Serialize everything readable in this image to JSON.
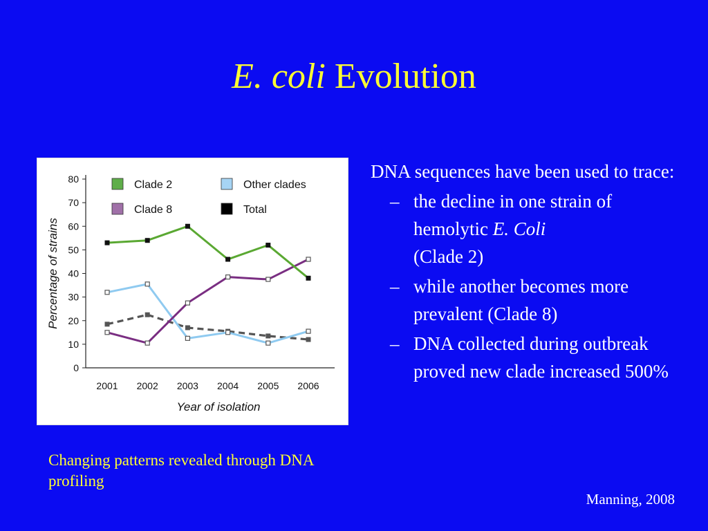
{
  "slide": {
    "title_italic": "E. coli",
    "title_rest": "Evolution",
    "caption": "Changing patterns revealed through DNA profiling",
    "credit": "Manning, 2008"
  },
  "bullets": {
    "main": "DNA sequences have been used to trace:",
    "sub": [
      {
        "dash": "–",
        "text_before": " the decline in one strain of hemolytic ",
        "italic": "E. Coli",
        "text_after": " (Clade 2)"
      },
      {
        "dash": "–",
        "text_before": " while another becomes more prevalent (Clade 8)",
        "italic": "",
        "text_after": ""
      },
      {
        "dash": "–",
        "text_before": "DNA collected during outbreak proved new clade increased 500%",
        "italic": "",
        "text_after": ""
      }
    ]
  },
  "chart_data": {
    "type": "line",
    "xlabel": "Year of isolation",
    "ylabel": "Percentage of strains",
    "ylim": [
      0,
      80
    ],
    "yticks": [
      0,
      10,
      20,
      30,
      40,
      50,
      60,
      70,
      80
    ],
    "categories": [
      "2001",
      "2002",
      "2003",
      "2004",
      "2005",
      "2006"
    ],
    "legend_position": "top",
    "series": [
      {
        "name": "Clade 2",
        "color": "#5aa832",
        "dashed": false,
        "marker": "filled",
        "values": [
          53,
          54,
          60,
          46,
          52,
          38
        ]
      },
      {
        "name": "Other clades",
        "color": "#8fcaf0",
        "dashed": false,
        "marker": "open",
        "values": [
          32,
          35.5,
          12.5,
          15,
          10.5,
          15.5
        ]
      },
      {
        "name": "Clade 8",
        "color": "#7a2e82",
        "dashed": false,
        "marker": "open",
        "values": [
          15,
          10.5,
          27.5,
          38.5,
          37.5,
          46
        ]
      },
      {
        "name": "Total",
        "color": "#555555",
        "dashed": true,
        "marker": "filled",
        "values": [
          18.5,
          22.5,
          17,
          15.5,
          13.5,
          12
        ]
      }
    ],
    "legend_swatches": {
      "Clade 2": "#5fae4a",
      "Other clades": "#a6d4f4",
      "Clade 8": "#a070a8",
      "Total": "#000000"
    }
  }
}
